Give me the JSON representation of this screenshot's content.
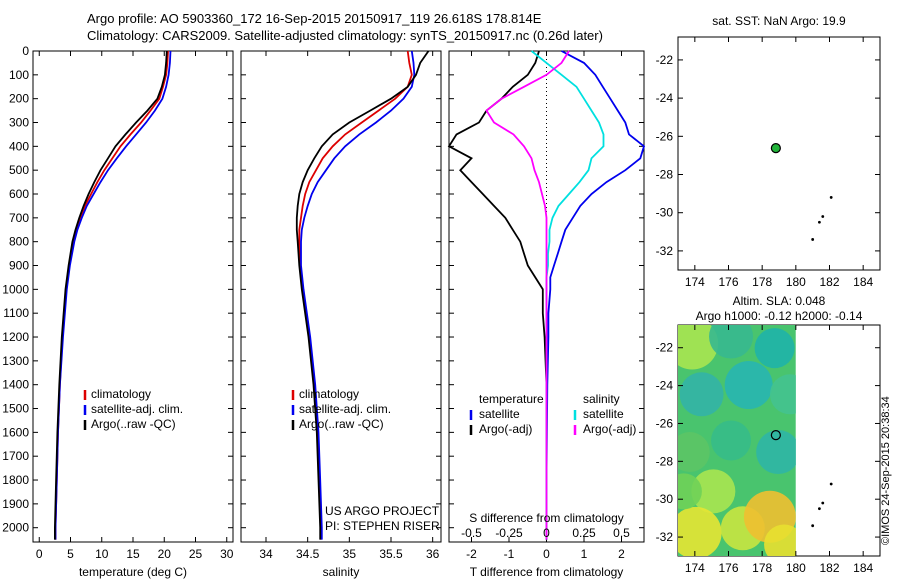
{
  "header": {
    "line1": "Argo profile: AO 5903360_172 16-Sep-2015 20150917_119 26.618S 178.814E",
    "line2": "Climatology: CARS2009. Satellite-adjusted climatology: synTS_20150917.nc (0.26d later)"
  },
  "colors": {
    "climatology": "#dd0000",
    "satellite": "#0000ee",
    "argo": "#000000",
    "argo_sal": "#ff00ff",
    "sat_sal": "#00e0e0"
  },
  "chart_data": [
    {
      "type": "line",
      "panel": "temperature",
      "xlabel": "temperature (deg C)",
      "ylabel": "",
      "xlim": [
        -1,
        31
      ],
      "ylim": [
        2060,
        0
      ],
      "xticks": [
        0,
        5,
        10,
        15,
        20,
        25,
        30
      ],
      "yticks": [
        0,
        100,
        200,
        300,
        400,
        500,
        600,
        700,
        800,
        900,
        1000,
        1100,
        1200,
        1300,
        1400,
        1500,
        1600,
        1700,
        1800,
        1900,
        2000
      ],
      "legend": [
        "climatology",
        "satellite-adj. clim.",
        "Argo(..raw -QC)"
      ],
      "legend_position": "lower-center",
      "depth": [
        0,
        50,
        100,
        150,
        200,
        250,
        300,
        350,
        400,
        450,
        500,
        550,
        600,
        650,
        700,
        750,
        800,
        900,
        1000,
        1200,
        1400,
        1600,
        1800,
        2000,
        2050
      ],
      "series": [
        {
          "name": "climatology",
          "values": [
            20.6,
            20.5,
            20.3,
            19.8,
            19.2,
            17.8,
            16.3,
            14.6,
            13.0,
            11.7,
            10.4,
            9.3,
            8.3,
            7.3,
            6.6,
            6.0,
            5.5,
            4.8,
            4.3,
            3.7,
            3.3,
            3.0,
            2.8,
            2.6,
            2.6
          ]
        },
        {
          "name": "satellite-adj. clim.",
          "values": [
            21.0,
            20.9,
            20.7,
            20.3,
            19.7,
            18.5,
            17.1,
            15.5,
            13.9,
            12.4,
            11.0,
            9.8,
            8.7,
            7.6,
            6.8,
            6.1,
            5.6,
            4.9,
            4.4,
            3.8,
            3.3,
            3.0,
            2.8,
            2.6,
            2.6
          ]
        },
        {
          "name": "Argo(..raw -QC)",
          "values": [
            20.4,
            20.3,
            20.1,
            19.6,
            18.9,
            17.3,
            15.5,
            13.8,
            12.2,
            11.0,
            9.8,
            8.8,
            7.9,
            7.1,
            6.4,
            5.8,
            5.3,
            4.7,
            4.2,
            3.6,
            3.2,
            2.9,
            2.7,
            2.5,
            2.5
          ]
        }
      ]
    },
    {
      "type": "line",
      "panel": "salinity",
      "xlabel": "salinity",
      "ylabel": "",
      "xlim": [
        33.7,
        36.1
      ],
      "ylim": [
        2060,
        0
      ],
      "xticks": [
        34,
        34.5,
        35,
        35.5,
        36
      ],
      "xticklabels": [
        "34",
        "34.5",
        "35",
        "35.5",
        "36"
      ],
      "legend": [
        "climatology",
        "satellite-adj. clim.",
        "Argo(..raw -QC)"
      ],
      "legend_position": "lower-center",
      "annotation": [
        "US ARGO PROJECT",
        "PI: STEPHEN RISER"
      ],
      "depth": [
        0,
        50,
        100,
        150,
        200,
        250,
        300,
        350,
        400,
        450,
        500,
        550,
        600,
        650,
        700,
        750,
        800,
        900,
        1000,
        1200,
        1400,
        1600,
        1800,
        2000,
        2050
      ],
      "series": [
        {
          "name": "climatology",
          "values": [
            35.7,
            35.72,
            35.75,
            35.7,
            35.55,
            35.35,
            35.15,
            34.95,
            34.8,
            34.68,
            34.6,
            34.52,
            34.47,
            34.44,
            34.42,
            34.4,
            34.4,
            34.41,
            34.44,
            34.52,
            34.58,
            34.62,
            34.64,
            34.66,
            34.66
          ]
        },
        {
          "name": "satellite-adj. clim.",
          "values": [
            35.75,
            35.77,
            35.78,
            35.75,
            35.65,
            35.5,
            35.32,
            35.12,
            34.95,
            34.82,
            34.72,
            34.62,
            34.55,
            34.5,
            34.46,
            34.43,
            34.42,
            34.42,
            34.45,
            34.53,
            34.59,
            34.63,
            34.65,
            34.67,
            34.67
          ]
        },
        {
          "name": "Argo(..raw -QC)",
          "values": [
            35.95,
            35.85,
            35.8,
            35.7,
            35.5,
            35.25,
            35.0,
            34.8,
            34.67,
            34.58,
            34.5,
            34.44,
            34.4,
            34.38,
            34.37,
            34.37,
            34.38,
            34.4,
            34.43,
            34.51,
            34.57,
            34.61,
            34.63,
            34.65,
            34.65
          ]
        }
      ]
    },
    {
      "type": "line",
      "panel": "difference",
      "xlabel": "T difference from climatology",
      "xlabel2": "S difference from climatology",
      "ylabel": "",
      "xlim": [
        -2.6,
        2.6
      ],
      "ylim": [
        2060,
        0
      ],
      "xticks": [
        -2,
        -1,
        0,
        1,
        2
      ],
      "xticklabels_T": [
        "-2",
        "-1",
        "0",
        "1",
        "2"
      ],
      "xticks_S": [
        -0.5,
        -0.25,
        0,
        0.25,
        0.5
      ],
      "xticklabels_S": [
        "-0.5",
        "-0.25",
        "0",
        "0.25",
        "0.5"
      ],
      "legend": [
        "temperature",
        "satellite",
        "Argo(-adj)",
        "salinity",
        "satellite",
        "Argo(-adj)"
      ],
      "legend_position": "lower-center",
      "depth": [
        0,
        50,
        100,
        150,
        200,
        250,
        300,
        350,
        400,
        450,
        500,
        550,
        600,
        650,
        700,
        750,
        800,
        850,
        900,
        950,
        1000,
        1100,
        1200,
        1400,
        1600,
        1800,
        2000,
        2050
      ],
      "series": [
        {
          "name": "temperature satellite",
          "values": [
            0.4,
            1.0,
            1.3,
            1.5,
            1.7,
            1.9,
            2.1,
            2.2,
            2.6,
            2.5,
            2.1,
            1.6,
            1.2,
            0.9,
            0.7,
            0.5,
            0.4,
            0.3,
            0.2,
            0.1,
            0.1,
            0.05,
            0.05,
            0.02,
            0.01,
            0.0,
            0.0,
            0.0
          ]
        },
        {
          "name": "temperature Argo(-adj)",
          "values": [
            -0.2,
            -0.3,
            -0.5,
            -0.9,
            -1.2,
            -1.6,
            -1.8,
            -2.4,
            -2.6,
            -2.0,
            -2.3,
            -2.0,
            -1.7,
            -1.4,
            -1.1,
            -0.9,
            -0.7,
            -0.6,
            -0.5,
            -0.3,
            -0.1,
            -0.1,
            -0.05,
            0.0,
            0.0,
            0.0,
            0.0,
            0.0
          ]
        },
        {
          "name": "salinity satellite",
          "values": [
            -0.1,
            0.0,
            0.1,
            0.2,
            0.25,
            0.3,
            0.35,
            0.38,
            0.38,
            0.3,
            0.28,
            0.22,
            0.15,
            0.08,
            0.04,
            0.02,
            0.02,
            0.01,
            0.01,
            0.0,
            0.0,
            0.0,
            0.0,
            0.0,
            0.0,
            0.0,
            0.0,
            0.0
          ]
        },
        {
          "name": "salinity Argo(-adj)",
          "values": [
            0.15,
            0.1,
            0.0,
            -0.15,
            -0.3,
            -0.4,
            -0.35,
            -0.22,
            -0.15,
            -0.1,
            -0.08,
            -0.05,
            -0.03,
            -0.01,
            0.0,
            0.0,
            0.0,
            0.0,
            0.0,
            0.0,
            0.0,
            0.0,
            0.0,
            0.0,
            0.0,
            0.0,
            0.0,
            0.0
          ]
        }
      ]
    },
    {
      "type": "scatter",
      "panel": "map-sst",
      "title": "sat. SST: NaN Argo: 19.9",
      "xlim": [
        173,
        185
      ],
      "ylim": [
        -33,
        -20.8
      ],
      "xticks": [
        174,
        176,
        178,
        180,
        182,
        184
      ],
      "yticks": [
        -22,
        -24,
        -26,
        -28,
        -30,
        -32
      ],
      "profile": {
        "x": 178.814,
        "y": -26.618
      },
      "track": [
        [
          182.1,
          -29.2
        ],
        [
          181.6,
          -30.2
        ],
        [
          181.4,
          -30.5
        ],
        [
          181.0,
          -31.4
        ]
      ]
    },
    {
      "type": "heatmap",
      "panel": "map-sla",
      "title": "Altim. SLA: 0.048",
      "subtitle": "Argo h1000: -0.12 h2000: -0.14",
      "xlim": [
        173,
        185
      ],
      "ylim": [
        -33,
        -20.8
      ],
      "xticks": [
        174,
        176,
        178,
        180,
        182,
        184
      ],
      "yticks": [
        -22,
        -24,
        -26,
        -28,
        -30,
        -32
      ],
      "field_extent": {
        "x": [
          173,
          180
        ],
        "y": [
          -33,
          -20.8
        ]
      },
      "profile": {
        "x": 178.814,
        "y": -26.618
      },
      "track": [
        [
          182.1,
          -29.2
        ],
        [
          181.6,
          -30.2
        ],
        [
          181.4,
          -30.5
        ],
        [
          181.0,
          -31.4
        ]
      ]
    }
  ],
  "stamp": "©IMOS 24-Sep-2015 20:38:34"
}
